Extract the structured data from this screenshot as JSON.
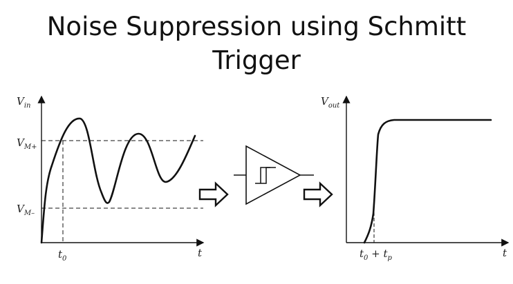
{
  "slide": {
    "title_line1": "Noise Suppression using Schmitt",
    "title_line2": "Trigger"
  },
  "input_plot": {
    "y_axis_label_main": "V",
    "y_axis_label_sub": "in",
    "x_axis_label": "t",
    "upper_threshold_main": "V",
    "upper_threshold_sub": "M+",
    "lower_threshold_main": "V",
    "lower_threshold_sub": "M–",
    "t0_main": "t",
    "t0_sub": "0"
  },
  "output_plot": {
    "y_axis_label_main": "V",
    "y_axis_label_sub": "out",
    "x_axis_label": "t",
    "switch_time_main": "t",
    "switch_time_sub1": "0",
    "switch_time_plus": " + ",
    "switch_time_main2": "t",
    "switch_time_sub2": "p"
  },
  "colors": {
    "ink": "#111111",
    "background": "#ffffff"
  },
  "icons": {
    "arrow_in": "hollow-right-arrow-icon",
    "arrow_out": "hollow-right-arrow-icon",
    "trigger": "schmitt-trigger-buffer-icon"
  }
}
